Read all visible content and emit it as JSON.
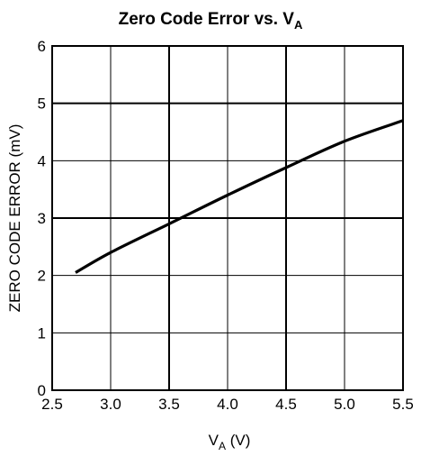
{
  "chart_data": {
    "type": "line",
    "title": {
      "main": "Zero Code Error vs. V",
      "sub": "A"
    },
    "xlabel": {
      "main": "V",
      "sub": "A",
      "suffix": " (V)"
    },
    "ylabel": "ZERO CODE ERROR (mV)",
    "xlim": [
      2.5,
      5.5
    ],
    "ylim": [
      0,
      6
    ],
    "x_ticks": [
      "2.5",
      "3.0",
      "3.5",
      "4.0",
      "4.5",
      "5.0",
      "5.5"
    ],
    "y_ticks": [
      "0",
      "1",
      "2",
      "3",
      "4",
      "5",
      "6"
    ],
    "x_major_ticks": [
      3.5,
      4.5
    ],
    "y_major_ticks": [
      3,
      5
    ],
    "grid": true,
    "series": [
      {
        "x": [
          2.7,
          3.0,
          3.5,
          4.0,
          4.5,
          5.0,
          5.5
        ],
        "y": [
          2.05,
          2.4,
          2.9,
          3.4,
          3.88,
          4.34,
          4.7
        ]
      }
    ]
  }
}
